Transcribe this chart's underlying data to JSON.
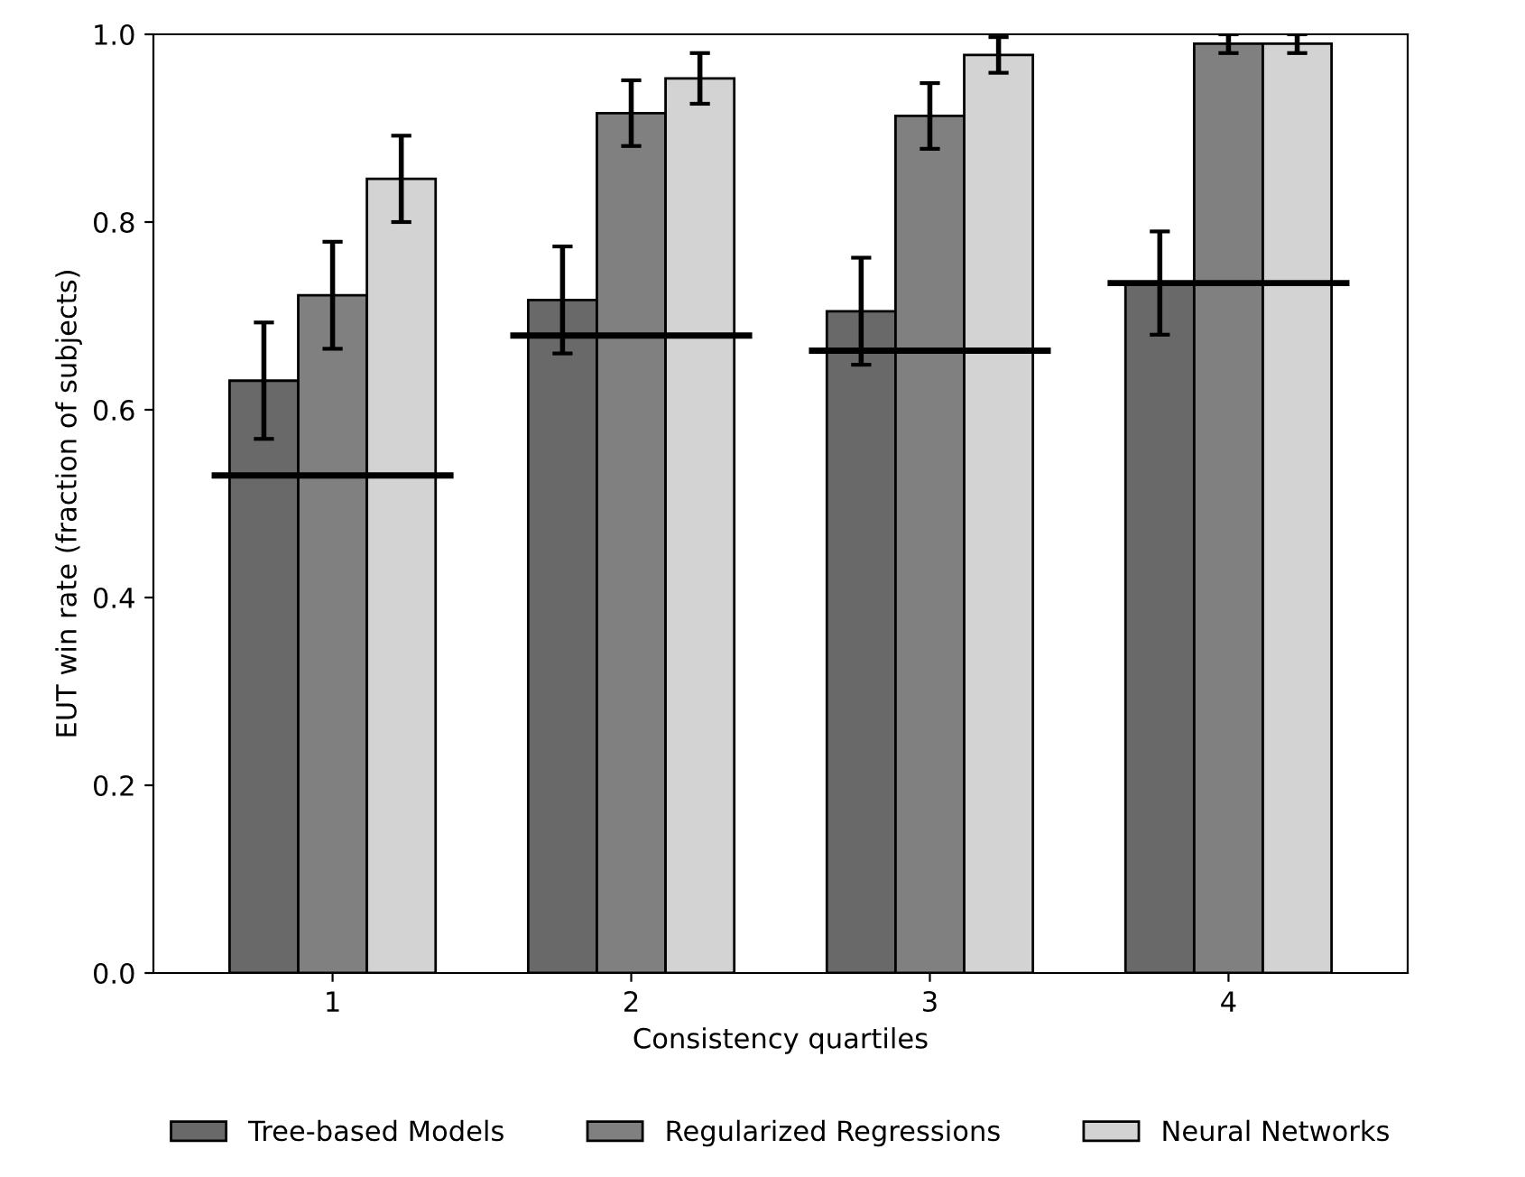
{
  "chart_data": {
    "type": "bar",
    "xlabel": "Consistency quartiles",
    "ylabel": "EUT win rate (fraction of subjects)",
    "categories": [
      "1",
      "2",
      "3",
      "4"
    ],
    "series": [
      {
        "name": "Tree-based Models",
        "color": "#696969",
        "values": [
          0.631,
          0.717,
          0.705,
          0.735
        ],
        "errors": [
          0.062,
          0.057,
          0.057,
          0.055
        ]
      },
      {
        "name": "Regularized Regressions",
        "color": "#808080",
        "values": [
          0.722,
          0.916,
          0.913,
          0.99
        ],
        "errors": [
          0.057,
          0.035,
          0.035,
          0.01
        ]
      },
      {
        "name": "Neural Networks",
        "color": "#d3d3d3",
        "values": [
          0.846,
          0.953,
          0.978,
          0.99
        ],
        "errors": [
          0.046,
          0.027,
          0.019,
          0.01
        ]
      }
    ],
    "ref_lines": [
      {
        "axis": "y",
        "value": 0.53,
        "color": "#000000"
      },
      {
        "axis": "y",
        "value": 0.679,
        "color": "#000000"
      },
      {
        "axis": "y",
        "value": 0.663,
        "color": "#000000"
      },
      {
        "axis": "y",
        "value": 0.735,
        "color": "#000000"
      }
    ],
    "ylim": [
      0.0,
      1.0
    ],
    "yticks": [
      {
        "value": 0,
        "label": "0.0"
      },
      {
        "value": 0.2,
        "label": "0.2"
      },
      {
        "value": 0.4,
        "label": "0.4"
      },
      {
        "value": 0.6,
        "label": "0.6"
      },
      {
        "value": 0.8,
        "label": "0.8"
      },
      {
        "value": 1,
        "label": "1.0"
      }
    ],
    "grid": false,
    "legend": "bottom"
  }
}
